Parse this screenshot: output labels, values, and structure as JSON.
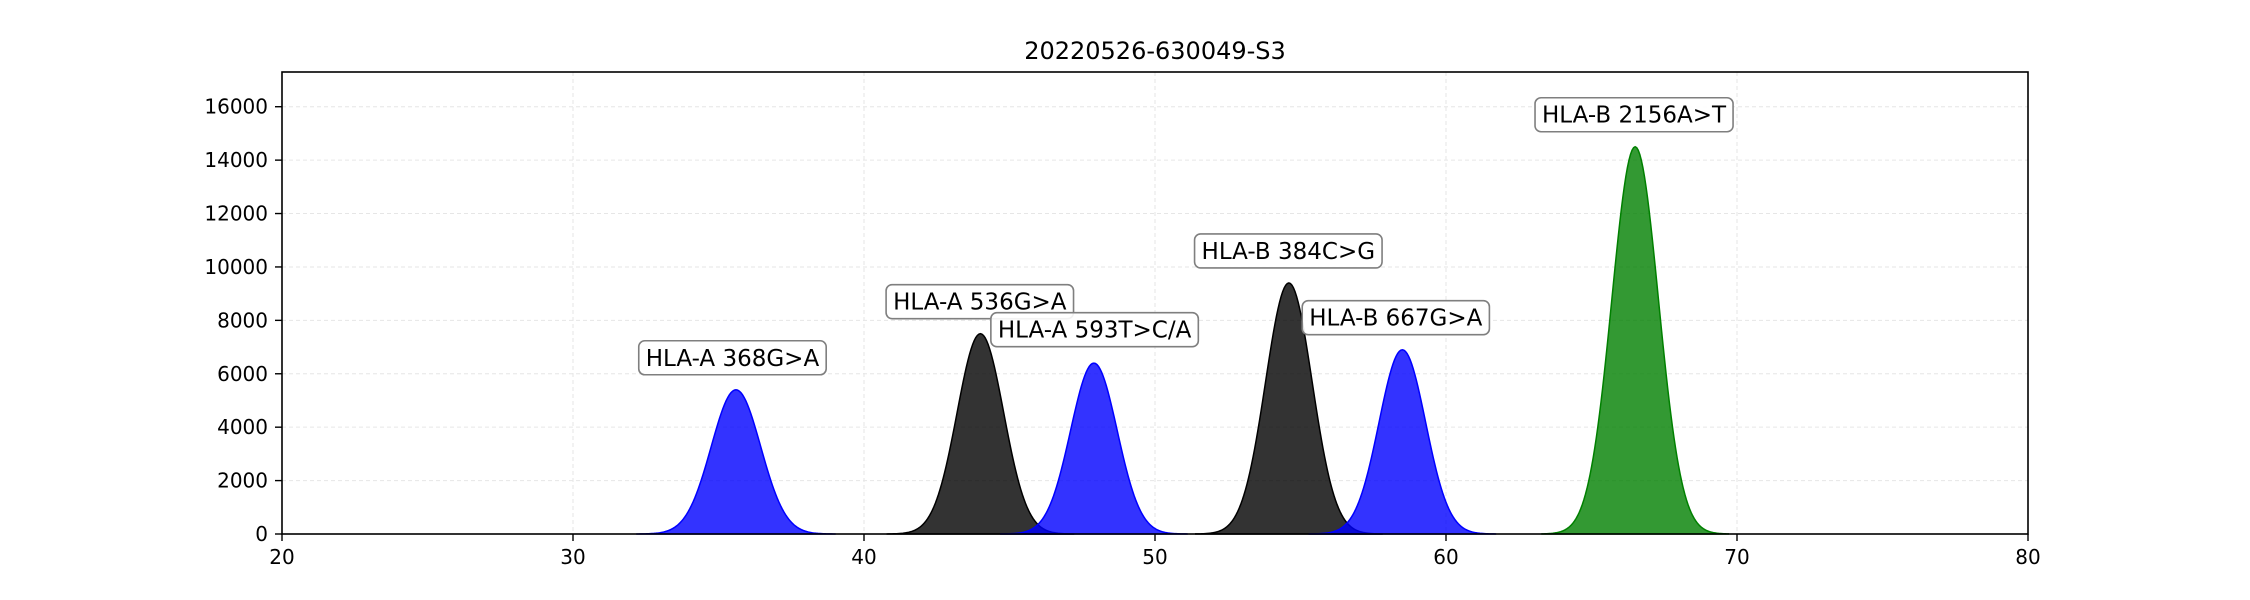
{
  "chart_data": {
    "type": "area",
    "title": "20220526-630049-S3",
    "xlabel": "",
    "ylabel": "",
    "xlim": [
      20,
      80
    ],
    "ylim": [
      0,
      17300
    ],
    "xticks": [
      20,
      30,
      40,
      50,
      60,
      70,
      80
    ],
    "yticks": [
      0,
      2000,
      4000,
      6000,
      8000,
      10000,
      12000,
      14000,
      16000
    ],
    "grid": true,
    "peaks": [
      {
        "label": "HLA-A 368G>A",
        "center": 35.6,
        "height": 5400,
        "sigma": 0.85,
        "color": "#0000ff",
        "label_x": 32.5,
        "label_y": 6300
      },
      {
        "label": "HLA-A 536G>A",
        "center": 44.0,
        "height": 7500,
        "sigma": 0.8,
        "color": "#000000",
        "label_x": 41.0,
        "label_y": 8400
      },
      {
        "label": "HLA-A 593T>C/A",
        "center": 47.9,
        "height": 6400,
        "sigma": 0.8,
        "color": "#0000ff",
        "label_x": 44.6,
        "label_y": 7350
      },
      {
        "label": "HLA-B 384C>G",
        "center": 54.6,
        "height": 9400,
        "sigma": 0.8,
        "color": "#000000",
        "label_x": 51.6,
        "label_y": 10300
      },
      {
        "label": "HLA-B 667G>A",
        "center": 58.5,
        "height": 6900,
        "sigma": 0.8,
        "color": "#0000ff",
        "label_x": 55.3,
        "label_y": 7800
      },
      {
        "label": "HLA-B 2156A>T",
        "center": 66.5,
        "height": 14500,
        "sigma": 0.8,
        "color": "#008000",
        "label_x": 63.3,
        "label_y": 15400
      }
    ]
  }
}
